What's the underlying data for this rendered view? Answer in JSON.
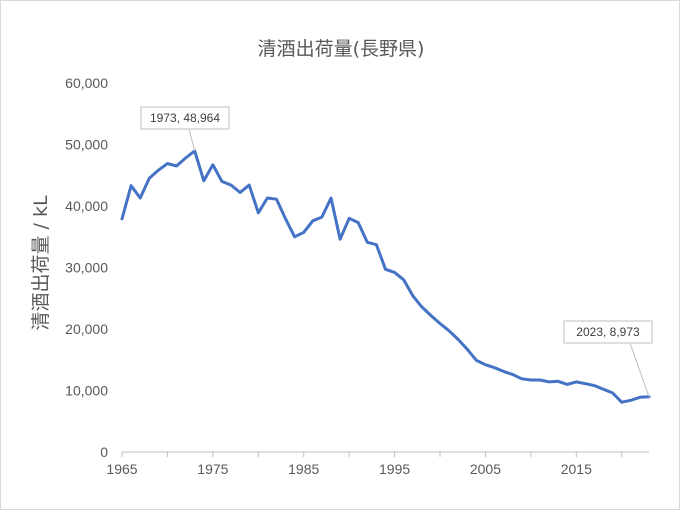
{
  "chart_data": {
    "type": "line",
    "title": "清酒出荷量(長野県)",
    "xlabel": "",
    "ylabel": "清酒出荷量 / kL",
    "xlim": [
      1965,
      2023
    ],
    "ylim": [
      0,
      60000
    ],
    "x_ticks": [
      "1965",
      "1975",
      "1985",
      "1995",
      "2005",
      "2015"
    ],
    "y_ticks": [
      "0",
      "10,000",
      "20,000",
      "30,000",
      "40,000",
      "50,000",
      "60,000"
    ],
    "grid": false,
    "legend": "none",
    "color": "#4472c4",
    "x": [
      1965,
      1966,
      1967,
      1968,
      1969,
      1970,
      1971,
      1972,
      1973,
      1974,
      1975,
      1976,
      1977,
      1978,
      1979,
      1980,
      1981,
      1982,
      1983,
      1984,
      1985,
      1986,
      1987,
      1988,
      1989,
      1990,
      1991,
      1992,
      1993,
      1994,
      1995,
      1996,
      1997,
      1998,
      1999,
      2000,
      2001,
      2002,
      2003,
      2004,
      2005,
      2006,
      2007,
      2008,
      2009,
      2010,
      2011,
      2012,
      2013,
      2014,
      2015,
      2016,
      2017,
      2018,
      2019,
      2020,
      2021,
      2022,
      2023
    ],
    "values": [
      37900,
      43300,
      41300,
      44500,
      45800,
      46900,
      46500,
      47800,
      48964,
      44100,
      46700,
      44000,
      43400,
      42200,
      43400,
      38900,
      41300,
      41100,
      37900,
      35000,
      35700,
      37600,
      38200,
      41300,
      34600,
      38000,
      37300,
      34100,
      33700,
      29700,
      29200,
      28000,
      25400,
      23600,
      22200,
      20900,
      19700,
      18300,
      16700,
      14900,
      14200,
      13700,
      13100,
      12600,
      11900,
      11700,
      11700,
      11400,
      11500,
      11000,
      11400,
      11100,
      10800,
      10200,
      9600,
      8100,
      8400,
      8900,
      8973
    ],
    "annotations": [
      {
        "x": 1973,
        "y": 48964,
        "label": "1973, 48,964"
      },
      {
        "x": 2023,
        "y": 8973,
        "label": "2023, 8,973"
      }
    ]
  }
}
